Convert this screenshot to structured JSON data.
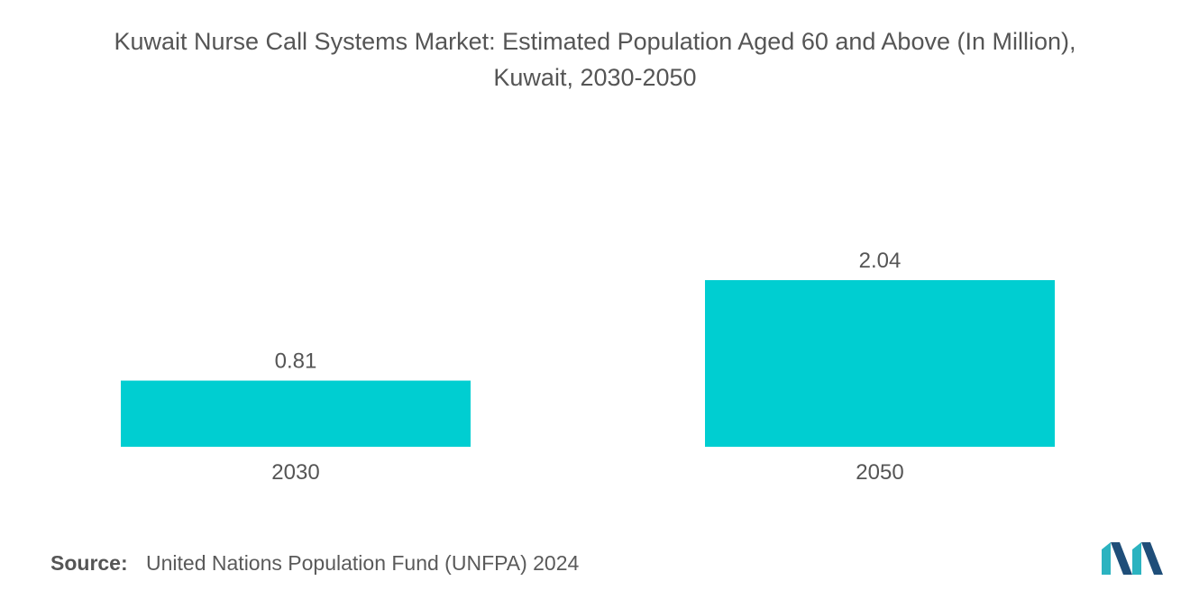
{
  "title_line1": "Kuwait Nurse Call Systems Market: Estimated Population Aged 60 and Above (In Million),",
  "title_line2": "Kuwait, 2030-2050",
  "source_label": "Source:",
  "source_text": "United Nations Population Fund (UNFPA) 2024",
  "colors": {
    "bar": "#00CED1",
    "text": "#555555",
    "logo_dark": "#1f4e79",
    "logo_teal": "#2bb3c0"
  },
  "chart_data": {
    "type": "bar",
    "title": "Kuwait Nurse Call Systems Market: Estimated Population Aged 60 and Above (In Million), Kuwait, 2030-2050",
    "categories": [
      "2030",
      "2050"
    ],
    "values": [
      0.81,
      2.04
    ],
    "value_labels": [
      "0.81",
      "2.04"
    ],
    "xlabel": "",
    "ylabel": "",
    "ylim": [
      0,
      2.04
    ],
    "grid": false,
    "legend": "none"
  }
}
